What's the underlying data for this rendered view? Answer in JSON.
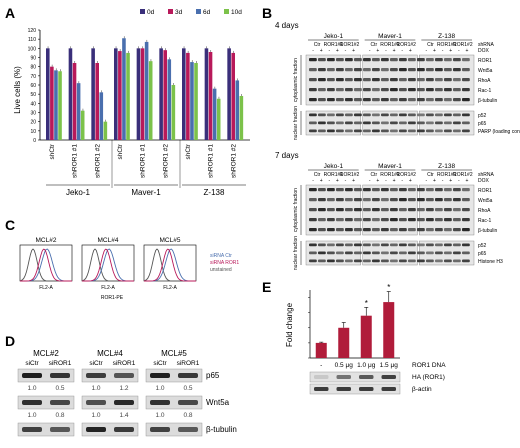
{
  "panels": {
    "A": {
      "letter": "A",
      "legend": [
        {
          "label": "0d",
          "color": "#3a2f7a"
        },
        {
          "label": "3d",
          "color": "#b8195a"
        },
        {
          "label": "6d",
          "color": "#4a6fae"
        },
        {
          "label": "10d",
          "color": "#7cc24a"
        }
      ],
      "ylabel": "Live cells (%)",
      "yticks": [
        "0",
        "10",
        "20",
        "30",
        "40",
        "50",
        "60",
        "70",
        "80",
        "90",
        "100",
        "110",
        "120"
      ],
      "groups": [
        "shCtr",
        "shROR1 #1",
        "shROR1 #2"
      ],
      "cell_lines": [
        "Jeko-1",
        "Maver-1",
        "Z-138"
      ]
    },
    "B": {
      "letter": "B",
      "sections": [
        {
          "title": "4 days",
          "cell_lines": [
            "Jeko-1",
            "Maver-1",
            "Z-138"
          ],
          "col_labels": [
            "Ctr",
            "ROR1#1",
            "ROR1#2"
          ],
          "row_shRNA": "shRNA",
          "row_dox": "DOX",
          "signs": [
            "-",
            "+",
            "-",
            "+",
            "-",
            "+"
          ],
          "cyto_label": "cytoplasmic fraction",
          "nuc_label": "nuclear fraction",
          "cyto_bands": [
            "ROR1",
            "Wnt5a",
            "RhoA",
            "Rac-1",
            "β-tubulin"
          ],
          "nuc_bands": [
            "p52",
            "p65",
            "PARP (loading control)"
          ]
        },
        {
          "title": "7 days",
          "cell_lines": [
            "Jeko-1",
            "Maver-1",
            "Z-138"
          ],
          "col_labels": [
            "Ctr",
            "ROR1#1",
            "ROR1#2"
          ],
          "row_shRNA": "shRNA",
          "row_dox": "DOX",
          "signs": [
            "-",
            "+",
            "-",
            "+",
            "-",
            "+"
          ],
          "cyto_label": "cytoplasmic fraction",
          "nuc_label": "nuclear fraction",
          "cyto_bands": [
            "ROR1",
            "Wnt5a",
            "RhoA",
            "Rac-1",
            "β-tubulin"
          ],
          "nuc_bands": [
            "p52",
            "p65",
            "Histone H3"
          ]
        }
      ]
    },
    "C": {
      "letter": "C",
      "samples": [
        "MCL#2",
        "MCL#4",
        "MCL#5"
      ],
      "xaxis": "FL2-A",
      "xtitle": "ROR1-PE",
      "legend": [
        {
          "label": "siRNA Ctr",
          "color": "#4a6fae"
        },
        {
          "label": "siRNA ROR1",
          "color": "#b8195a"
        },
        {
          "label": "unstained",
          "color": "#555555"
        }
      ]
    },
    "D": {
      "letter": "D",
      "samples": [
        "MCL#2",
        "MCL#4",
        "MCL#5"
      ],
      "lanes": [
        "siCtr",
        "siROR1"
      ],
      "rows": [
        {
          "label": "p65",
          "values": [
            "1.0",
            "0.5",
            "1.0",
            "1.2",
            "1.0",
            "0.5"
          ]
        },
        {
          "label": "Wnt5a",
          "values": [
            "1.0",
            "0.8",
            "1.0",
            "1.4",
            "1.0",
            "0.8"
          ]
        },
        {
          "label": "β-tubulin",
          "values": []
        }
      ]
    },
    "E": {
      "letter": "E",
      "ylabel": "Fold change",
      "xlabels": [
        "-",
        "0.5 μg",
        "1.0 μg",
        "1.5 μg"
      ],
      "xtitle": "ROR1 DNA",
      "blot_labels": [
        "HA (ROR1)",
        "β-actin"
      ],
      "star": "*"
    }
  },
  "chart_data": [
    {
      "type": "bar",
      "title": "",
      "ylabel": "Live cells (%)",
      "ylim": [
        0,
        120
      ],
      "categories": [
        "Jeko-1 shCtr",
        "Jeko-1 shROR1 #1",
        "Jeko-1 shROR1 #2",
        "Maver-1 shCtr",
        "Maver-1 shROR1 #1",
        "Maver-1 shROR1 #2",
        "Z-138 shCtr",
        "Z-138 shROR1 #1",
        "Z-138 shROR1 #2"
      ],
      "series": [
        {
          "name": "0d",
          "values": [
            100,
            100,
            100,
            100,
            100,
            100,
            100,
            100,
            100
          ]
        },
        {
          "name": "3d",
          "values": [
            80,
            84,
            84,
            97,
            100,
            98,
            95,
            96,
            95
          ]
        },
        {
          "name": "6d",
          "values": [
            76,
            62,
            52,
            111,
            107,
            88,
            85,
            56,
            65
          ]
        },
        {
          "name": "10d",
          "values": [
            75,
            32,
            20,
            95,
            86,
            60,
            84,
            45,
            48
          ]
        }
      ],
      "legend": "top-right"
    },
    {
      "type": "bar",
      "title": "",
      "ylabel": "Fold change",
      "ylim": [
        0,
        4.5
      ],
      "categories": [
        "-",
        "0.5 μg",
        "1.0 μg",
        "1.5 μg"
      ],
      "values": [
        1.0,
        2.0,
        2.8,
        3.7
      ],
      "errors": [
        0.05,
        0.35,
        0.55,
        0.7
      ]
    }
  ]
}
